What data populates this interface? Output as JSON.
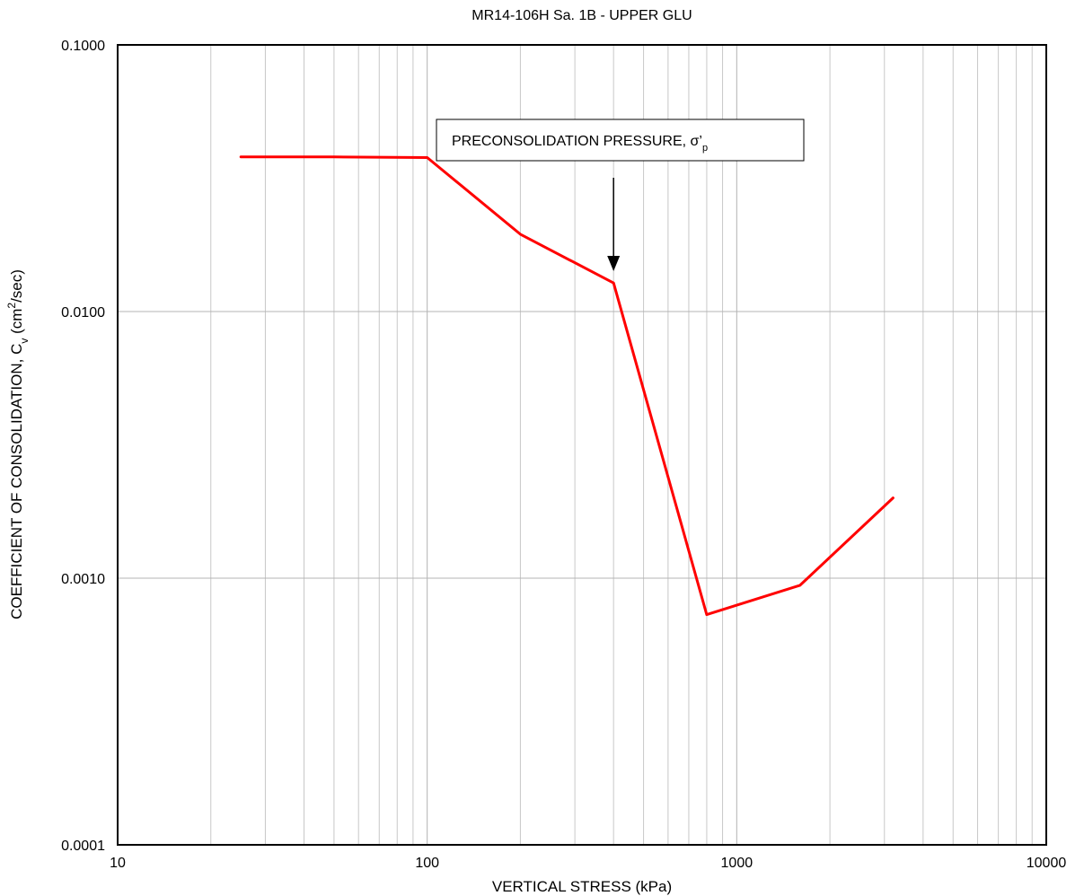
{
  "chart_data": {
    "type": "line",
    "title": "MR14-106H Sa. 1B - UPPER GLU",
    "xlabel": "VERTICAL STRESS (kPa)",
    "ylabel": {
      "prefix": "COEFFICIENT OF CONSOLIDATION, C",
      "sub": "v",
      "middle": " (cm",
      "sup": "2",
      "suffix": "/sec)"
    },
    "x_scale": "log",
    "y_scale": "log",
    "xlim": [
      10,
      10000
    ],
    "ylim": [
      0.0001,
      0.1
    ],
    "x_ticks": [
      10,
      100,
      1000,
      10000
    ],
    "x_tick_labels": [
      "10",
      "100",
      "1000",
      "10000"
    ],
    "y_ticks": [
      0.0001,
      0.001,
      0.01,
      0.1
    ],
    "y_tick_labels": [
      "0.0001",
      "0.0010",
      "0.0100",
      "0.1000"
    ],
    "grid": true,
    "series": [
      {
        "color": "#ff0000",
        "x": [
          25,
          50,
          100,
          200,
          400,
          800,
          1600,
          3200
        ],
        "y": [
          0.038,
          0.038,
          0.0378,
          0.0195,
          0.0128,
          0.00073,
          0.00094,
          0.002
        ]
      }
    ],
    "annotation": {
      "text": "PRECONSOLIDATION PRESSURE, σ’",
      "sub": "p",
      "arrow_x": 400
    }
  }
}
